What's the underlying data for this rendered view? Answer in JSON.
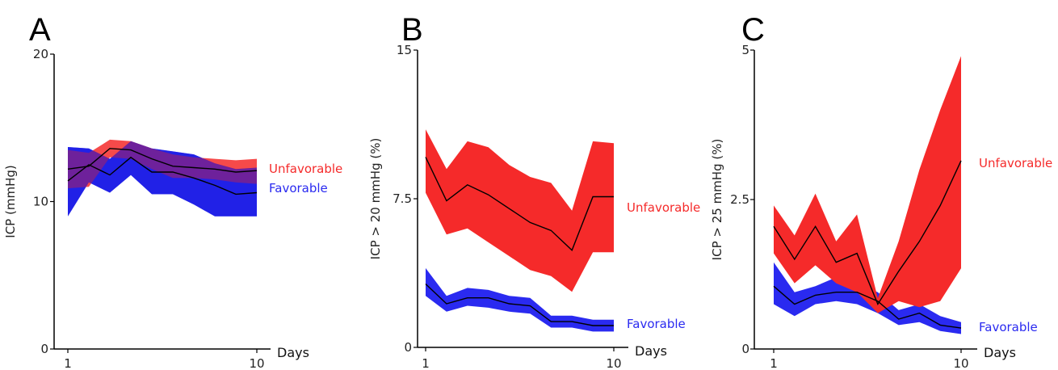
{
  "colors": {
    "unfavorable": "#f52a2a",
    "favorable": "#2a2af0",
    "mean_line": "#000000",
    "axis": "#000000"
  },
  "chart_data": [
    {
      "panel": "A",
      "type": "area",
      "xlabel": "Days",
      "ylabel": "ICP (mmHg)",
      "xlim": [
        1,
        10
      ],
      "ylim": [
        0,
        20
      ],
      "x_ticks": [
        "1",
        "10"
      ],
      "y_ticks": [
        "0",
        "10",
        "20"
      ],
      "series": [
        {
          "name": "Unfavorable",
          "color": "#f52a2a",
          "x": [
            1,
            2,
            3,
            4,
            5,
            6,
            7,
            8,
            9,
            10
          ],
          "mean": [
            12.2,
            12.4,
            13.6,
            13.5,
            12.9,
            12.4,
            12.3,
            12.2,
            12.0,
            12.1
          ],
          "upper": [
            13.5,
            13.3,
            14.2,
            14.1,
            13.6,
            13.2,
            13.0,
            12.9,
            12.8,
            12.9
          ],
          "lower": [
            10.9,
            11.0,
            13.0,
            12.9,
            12.2,
            11.6,
            11.6,
            11.5,
            11.3,
            11.2
          ]
        },
        {
          "name": "Favorable",
          "color": "#2a2af0",
          "x": [
            1,
            2,
            3,
            4,
            5,
            6,
            7,
            8,
            9,
            10
          ],
          "mean": [
            11.4,
            12.5,
            11.8,
            13.0,
            12.0,
            12.0,
            11.6,
            11.1,
            10.5,
            10.6
          ],
          "upper": [
            13.7,
            13.6,
            12.9,
            14.1,
            13.6,
            13.4,
            13.2,
            12.6,
            12.2,
            12.3
          ],
          "lower": [
            9.0,
            11.3,
            10.6,
            11.8,
            10.5,
            10.5,
            9.8,
            9.0,
            9.0,
            9.0
          ]
        }
      ]
    },
    {
      "panel": "B",
      "type": "area",
      "xlabel": "Days",
      "ylabel": "ICP > 20 mmHg (%)",
      "xlim": [
        1,
        10
      ],
      "ylim": [
        0,
        15
      ],
      "x_ticks": [
        "1",
        "10"
      ],
      "y_ticks": [
        "0",
        "7.5",
        "15"
      ],
      "series": [
        {
          "name": "Unfavorable",
          "color": "#f52a2a",
          "x": [
            1,
            2,
            3,
            4,
            5,
            6,
            7,
            8,
            9,
            10
          ],
          "mean": [
            9.6,
            7.4,
            8.2,
            7.7,
            7.0,
            6.3,
            5.9,
            4.9,
            7.6,
            7.6
          ],
          "upper": [
            11.0,
            9.0,
            10.4,
            10.1,
            9.2,
            8.6,
            8.3,
            6.9,
            10.4,
            10.3
          ],
          "lower": [
            7.8,
            5.7,
            6.0,
            5.3,
            4.6,
            3.9,
            3.6,
            2.8,
            4.8,
            4.8
          ]
        },
        {
          "name": "Favorable",
          "color": "#2a2af0",
          "x": [
            1,
            2,
            3,
            4,
            5,
            6,
            7,
            8,
            9,
            10
          ],
          "mean": [
            3.2,
            2.2,
            2.5,
            2.5,
            2.2,
            2.1,
            1.3,
            1.3,
            1.1,
            1.1
          ],
          "upper": [
            4.0,
            2.6,
            3.0,
            2.9,
            2.6,
            2.5,
            1.6,
            1.6,
            1.4,
            1.4
          ],
          "lower": [
            2.6,
            1.8,
            2.1,
            2.0,
            1.8,
            1.7,
            1.0,
            1.0,
            0.8,
            0.8
          ]
        }
      ]
    },
    {
      "panel": "C",
      "type": "area",
      "xlabel": "Days",
      "ylabel": "ICP > 25 mmHg (%)",
      "xlim": [
        1,
        10
      ],
      "ylim": [
        0,
        5
      ],
      "x_ticks": [
        "1",
        "10"
      ],
      "y_ticks": [
        "0",
        "2.5",
        "5"
      ],
      "series": [
        {
          "name": "Unfavorable",
          "color": "#f52a2a",
          "x": [
            1,
            2,
            3,
            4,
            5,
            6,
            7,
            8,
            9,
            10
          ],
          "mean": [
            2.05,
            1.5,
            2.05,
            1.45,
            1.6,
            0.75,
            1.3,
            1.8,
            2.4,
            3.15
          ],
          "upper": [
            2.4,
            1.9,
            2.6,
            1.8,
            2.25,
            0.85,
            1.8,
            3.0,
            4.0,
            4.9
          ],
          "lower": [
            1.6,
            1.1,
            1.4,
            1.1,
            0.95,
            0.6,
            0.8,
            0.7,
            0.8,
            1.35
          ]
        },
        {
          "name": "Favorable",
          "color": "#2a2af0",
          "x": [
            1,
            2,
            3,
            4,
            5,
            6,
            7,
            8,
            9,
            10
          ],
          "mean": [
            1.05,
            0.75,
            0.9,
            0.95,
            0.95,
            0.8,
            0.5,
            0.6,
            0.4,
            0.35
          ],
          "upper": [
            1.45,
            0.95,
            1.05,
            1.2,
            1.1,
            0.95,
            0.65,
            0.75,
            0.55,
            0.45
          ],
          "lower": [
            0.75,
            0.55,
            0.75,
            0.8,
            0.75,
            0.6,
            0.4,
            0.45,
            0.3,
            0.25
          ]
        }
      ]
    }
  ]
}
